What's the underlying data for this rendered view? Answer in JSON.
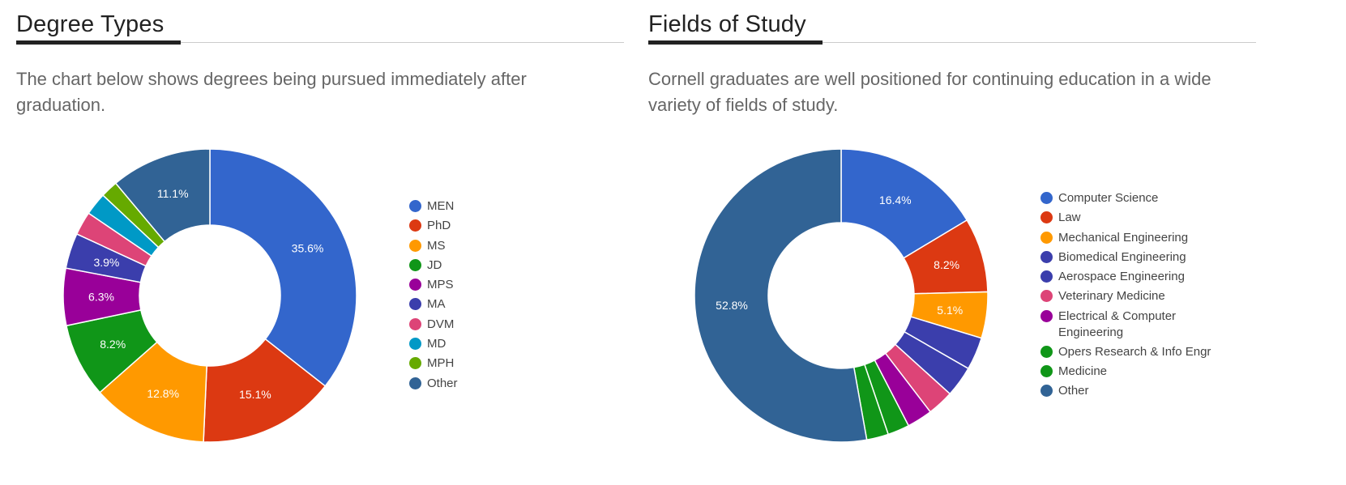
{
  "sections": [
    {
      "title": "Degree Types",
      "description": "The chart below shows degrees being pursued immediately after graduation."
    },
    {
      "title": "Fields of Study",
      "description": "Cornell graduates are well positioned for continuing education in a wide variety of fields of study."
    }
  ],
  "chart_data": [
    {
      "type": "pie",
      "variant": "donut",
      "title": "Degree Types",
      "legend_position": "right",
      "categories": [
        "MEN",
        "PhD",
        "MS",
        "JD",
        "MPS",
        "MA",
        "DVM",
        "MD",
        "MPH",
        "Other"
      ],
      "values": [
        35.6,
        15.1,
        12.8,
        8.2,
        6.3,
        3.9,
        2.6,
        2.5,
        1.9,
        11.1
      ],
      "labels": [
        "35.6%",
        "15.1%",
        "12.8%",
        "8.2%",
        "6.3%",
        "3.9%",
        "",
        "",
        "",
        "11.1%"
      ],
      "colors": [
        "#3366cc",
        "#dc3912",
        "#ff9900",
        "#109618",
        "#990099",
        "#3b3eac",
        "#dd4477",
        "#0099c6",
        "#66aa00",
        "#316395"
      ],
      "unit": "%"
    },
    {
      "type": "pie",
      "variant": "donut",
      "title": "Fields of Study",
      "legend_position": "right",
      "categories": [
        "Computer Science",
        "Law",
        "Mechanical Engineering",
        "Biomedical Engineering",
        "Aerospace Engineering",
        "Veterinary Medicine",
        "Electrical & Computer Engineering",
        "Opers Research & Info Engr",
        "Medicine",
        "Other"
      ],
      "values": [
        16.4,
        8.2,
        5.1,
        3.6,
        3.4,
        2.9,
        2.8,
        2.4,
        2.4,
        52.8
      ],
      "labels": [
        "16.4%",
        "8.2%",
        "5.1%",
        "",
        "",
        "",
        "",
        "",
        "",
        "52.8%"
      ],
      "colors": [
        "#3366cc",
        "#dc3912",
        "#ff9900",
        "#3b3eac",
        "#3b3eac",
        "#dd4477",
        "#990099",
        "#109618",
        "#109618",
        "#316395"
      ],
      "unit": "%"
    }
  ]
}
